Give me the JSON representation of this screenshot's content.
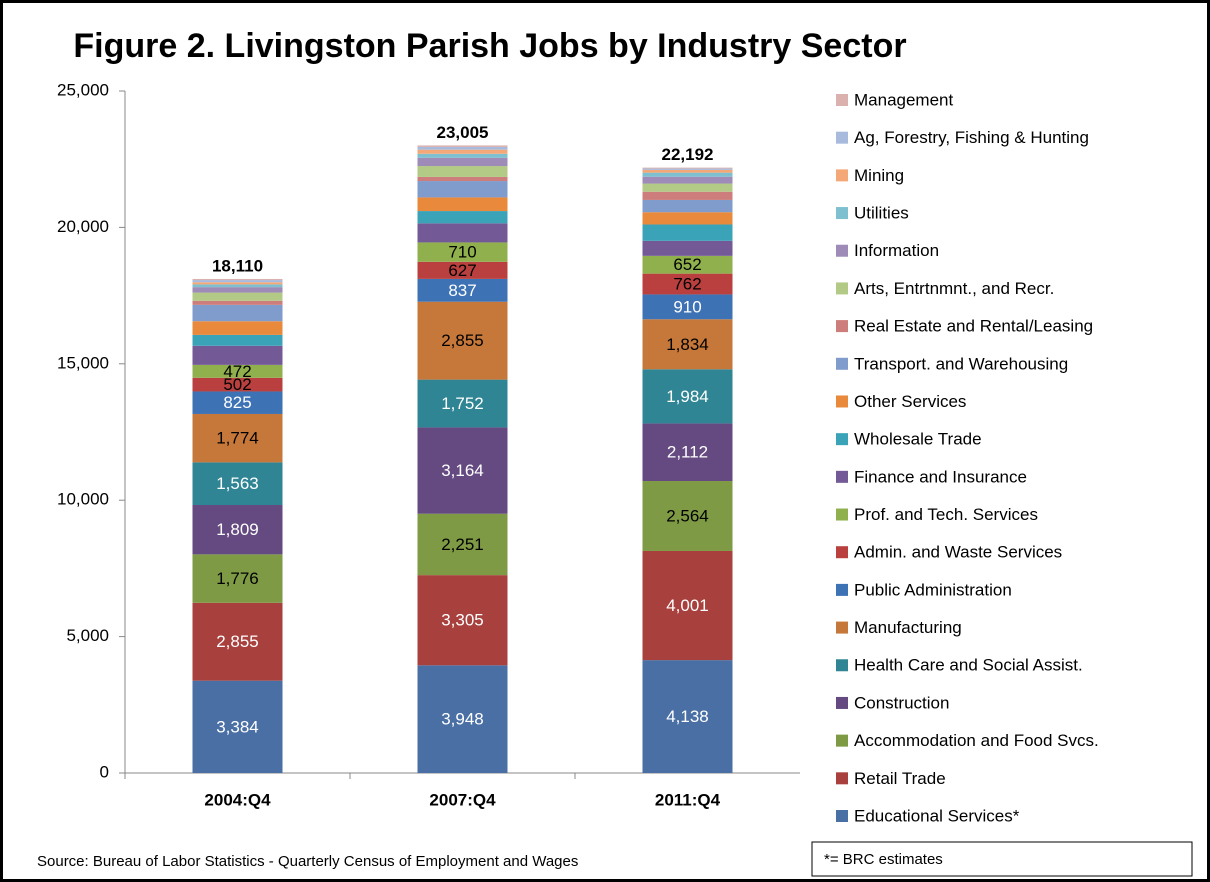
{
  "chart_data": {
    "type": "stacked_bar",
    "title": "Figure 2. Livingston Parish Jobs by Industry Sector",
    "source": "Source: Bureau of Labor Statistics - Quarterly Census of Employment and Wages",
    "note": "*= BRC estimates",
    "categories": [
      "2004:Q4",
      "2007:Q4",
      "2011:Q4"
    ],
    "ylim": [
      0,
      25000
    ],
    "yticks": [
      0,
      {
        "value": 5000,
        "label": "5,000"
      },
      {
        "value": 10000,
        "label": "10,000"
      },
      {
        "value": 15000,
        "label": "15,000"
      },
      {
        "value": 20000,
        "label": "20,000"
      },
      {
        "value": 25000,
        "label": "25,000"
      }
    ],
    "totals": [
      18110,
      23005,
      22192
    ],
    "total_labels": [
      "18,110",
      "23,005",
      "22,192"
    ],
    "series": [
      {
        "name": "Educational Services*",
        "color": "#4a6fa5",
        "label_color": "#ffffff",
        "values": [
          3384,
          3948,
          4138
        ],
        "value_labels": [
          "3,384",
          "3,948",
          "4,138"
        ]
      },
      {
        "name": "Retail Trade",
        "color": "#a8403d",
        "label_color": "#ffffff",
        "values": [
          2855,
          3305,
          4001
        ],
        "value_labels": [
          "2,855",
          "3,305",
          "4,001"
        ]
      },
      {
        "name": "Accommodation and Food Svcs.",
        "color": "#7e9a45",
        "label_color": "#000000",
        "values": [
          1776,
          2251,
          2564
        ],
        "value_labels": [
          "1,776",
          "2,251",
          "2,564"
        ]
      },
      {
        "name": "Construction",
        "color": "#644a80",
        "label_color": "#ffffff",
        "values": [
          1809,
          3164,
          2112
        ],
        "value_labels": [
          "1,809",
          "3,164",
          "2,112"
        ]
      },
      {
        "name": "Health Care and Social Assist.",
        "color": "#2f8594",
        "label_color": "#ffffff",
        "values": [
          1563,
          1752,
          1984
        ],
        "value_labels": [
          "1,563",
          "1,752",
          "1,984"
        ]
      },
      {
        "name": "Manufacturing",
        "color": "#c6783a",
        "label_color": "#000000",
        "values": [
          1774,
          2855,
          1834
        ],
        "value_labels": [
          "1,774",
          "2,855",
          "1,834"
        ]
      },
      {
        "name": "Public Administration",
        "color": "#3d72b5",
        "label_color": "#ffffff",
        "values": [
          825,
          837,
          910
        ]
      },
      {
        "name": "Admin. and Waste Services",
        "color": "#b9403e",
        "label_color": "#000000",
        "values": [
          502,
          627,
          762
        ]
      },
      {
        "name": "Prof. and Tech. Services",
        "color": "#8fb04c",
        "label_color": "#000000",
        "values": [
          472,
          710,
          652
        ]
      },
      {
        "name": "Finance and Insurance",
        "color": "#735a96",
        "values": [
          700,
          700,
          550
        ]
      },
      {
        "name": "Wholesale Trade",
        "color": "#3ba3b8",
        "values": [
          400,
          450,
          600
        ]
      },
      {
        "name": "Other Services",
        "color": "#e8893b",
        "values": [
          500,
          500,
          450
        ]
      },
      {
        "name": "Transport. and Warehousing",
        "color": "#7f9ccc",
        "values": [
          600,
          600,
          450
        ]
      },
      {
        "name": "Real Estate  and Rental/Leasing",
        "color": "#cd7d7b",
        "values": [
          150,
          150,
          300
        ]
      },
      {
        "name": "Arts, Entrtnmnt.,  and Recr.",
        "color": "#b3ca86",
        "values": [
          300,
          400,
          300
        ]
      },
      {
        "name": "Information",
        "color": "#9e8bb8",
        "values": [
          200,
          300,
          250
        ]
      },
      {
        "name": "Utilities",
        "color": "#7ec0cf",
        "values": [
          100,
          150,
          150
        ]
      },
      {
        "name": "Mining",
        "color": "#f5a877",
        "values": [
          80,
          150,
          100
        ]
      },
      {
        "name": "Ag, Forestry, Fishing & Hunting",
        "color": "#a9bbdc",
        "values": [
          80,
          100,
          50
        ]
      },
      {
        "name": "Management",
        "color": "#dbb1b0",
        "values": [
          40,
          56,
          35
        ]
      }
    ]
  }
}
